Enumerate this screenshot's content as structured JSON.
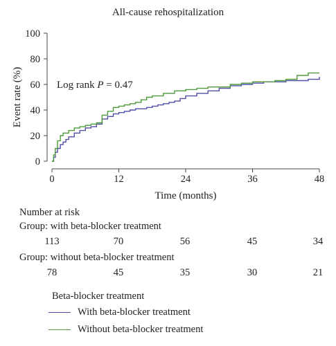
{
  "chart_data": {
    "type": "line",
    "title": "All-cause rehospitalization",
    "xlabel": "Time (months)",
    "ylabel": "Event rate (%)",
    "xlim": [
      0,
      48
    ],
    "ylim": [
      0,
      100
    ],
    "xticks": [
      0,
      12,
      24,
      36,
      48
    ],
    "yticks": [
      0,
      20,
      40,
      60,
      80,
      100
    ],
    "grid": false,
    "annotation": {
      "prefix": "Log rank ",
      "var": "P",
      "suffix": " = 0.47"
    },
    "series": [
      {
        "name": "With beta-blocker treatment",
        "color": "#4f4fa8",
        "x": [
          0,
          0.3,
          0.6,
          1,
          1.5,
          2,
          2.5,
          3,
          4,
          5,
          6,
          7,
          8,
          9,
          10,
          11,
          12,
          13,
          14,
          15,
          16,
          17,
          18,
          19,
          20,
          21,
          22,
          23,
          24,
          26,
          28,
          30,
          32,
          34,
          36,
          38,
          40,
          42,
          44,
          46,
          48
        ],
        "y": [
          0,
          3,
          7,
          10,
          13,
          15,
          17,
          19,
          22,
          24,
          26,
          27,
          29,
          33,
          35,
          37,
          38,
          39,
          40,
          41,
          41,
          42,
          43,
          44,
          45,
          46,
          47,
          49,
          51,
          53,
          55,
          57,
          59,
          60,
          61,
          62,
          62,
          63,
          63,
          64,
          66
        ]
      },
      {
        "name": "Without beta-blocker treatment",
        "color": "#4e9a3c",
        "x": [
          0,
          0.3,
          0.6,
          1,
          1.5,
          2,
          3,
          4,
          5,
          6,
          7,
          8,
          9,
          10,
          11,
          12,
          13,
          14,
          15,
          16,
          17,
          18,
          20,
          22,
          24,
          26,
          28,
          30,
          32,
          34,
          36,
          38,
          40,
          42,
          44,
          46,
          48
        ],
        "y": [
          0,
          5,
          10,
          16,
          20,
          22,
          24,
          26,
          27,
          28,
          29,
          30,
          36,
          39,
          42,
          43,
          44,
          45,
          46,
          48,
          50,
          51,
          53,
          55,
          56,
          57,
          58,
          58,
          60,
          61,
          62,
          62,
          63,
          64,
          67,
          69,
          69
        ]
      }
    ]
  },
  "risk_table": {
    "header": "Number at risk",
    "groups": [
      {
        "label": "Group: with beta-blocker treatment",
        "values": [
          "113",
          "70",
          "56",
          "45",
          "34"
        ]
      },
      {
        "label": "Group: without beta-blocker treatment",
        "values": [
          "78",
          "45",
          "35",
          "30",
          "21"
        ]
      }
    ]
  },
  "legend": {
    "title": "Beta-blocker treatment",
    "items": [
      {
        "label": "With beta-blocker treatment",
        "color": "#4f4fa8"
      },
      {
        "label": "Without beta-blocker treatment",
        "color": "#4e9a3c"
      }
    ]
  }
}
